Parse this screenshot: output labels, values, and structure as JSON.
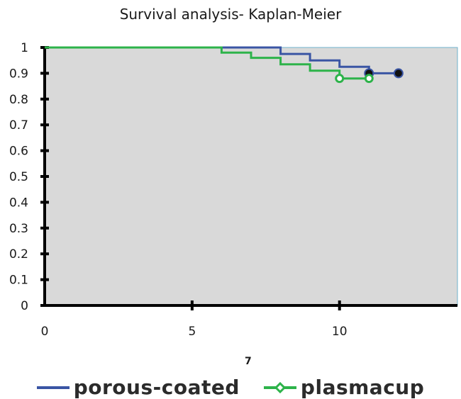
{
  "chart_data": {
    "type": "line",
    "title": "Survival analysis- Kaplan-Meier",
    "xlabel": "7",
    "ylabel": "",
    "xlim": [
      0,
      14
    ],
    "ylim": [
      0,
      1
    ],
    "x_ticks": [
      0,
      5,
      10
    ],
    "y_ticks": [
      0,
      0.1,
      0.2,
      0.3,
      0.4,
      0.5,
      0.6,
      0.7,
      0.8,
      0.9,
      1
    ],
    "y_tick_labels": [
      "0",
      "0.1",
      "0.2",
      "0.3",
      "0.4",
      "0.5",
      "0.6",
      "0.7",
      "0.8",
      "0.9",
      "1"
    ],
    "plot_background": "#d9d9d9",
    "grid": false,
    "legend_position": "bottom",
    "series": [
      {
        "name": "porous-coated",
        "color": "#3a55a4",
        "marker": "filled-circle",
        "step": [
          [
            0,
            1.0
          ],
          [
            8,
            1.0
          ],
          [
            8,
            0.975
          ],
          [
            9,
            0.975
          ],
          [
            9,
            0.95
          ],
          [
            10,
            0.95
          ],
          [
            10,
            0.925
          ],
          [
            11,
            0.925
          ],
          [
            11,
            0.9
          ],
          [
            12,
            0.9
          ]
        ],
        "censored": [
          [
            11,
            0.9
          ],
          [
            12,
            0.9
          ]
        ]
      },
      {
        "name": "plasmacup",
        "color": "#2db34a",
        "marker": "open-circle",
        "step": [
          [
            0,
            1.0
          ],
          [
            6,
            1.0
          ],
          [
            6,
            0.98
          ],
          [
            7,
            0.98
          ],
          [
            7,
            0.96
          ],
          [
            8,
            0.96
          ],
          [
            8,
            0.935
          ],
          [
            9,
            0.935
          ],
          [
            9,
            0.91
          ],
          [
            10,
            0.91
          ],
          [
            10,
            0.88
          ],
          [
            11,
            0.88
          ]
        ],
        "censored": [
          [
            10,
            0.88
          ],
          [
            11,
            0.88
          ]
        ]
      }
    ]
  }
}
